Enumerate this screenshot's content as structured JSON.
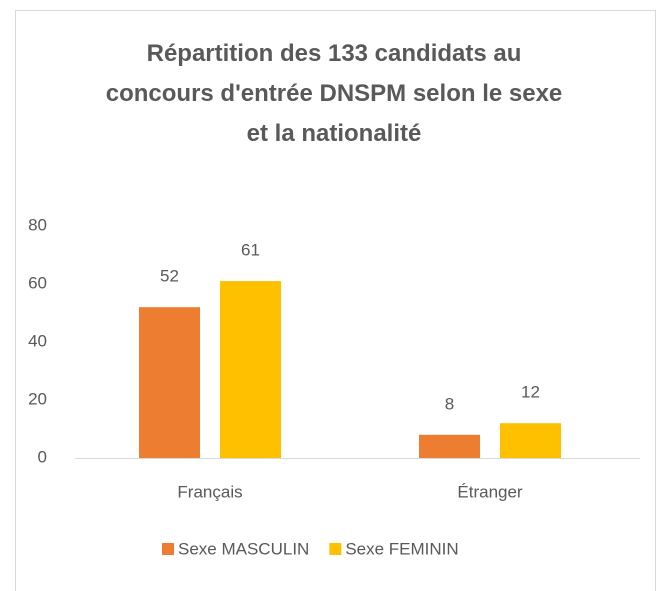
{
  "chart_data": {
    "type": "bar",
    "title": "Répartition des 133 candidats au concours d'entrée DNSPM selon le sexe et la nationalité",
    "categories": [
      "Français",
      "Étranger"
    ],
    "series": [
      {
        "name": "Sexe MASCULIN",
        "color": "#ed7d31",
        "values": [
          52,
          8
        ]
      },
      {
        "name": "Sexe FEMININ",
        "color": "#ffc000",
        "values": [
          61,
          12
        ]
      }
    ],
    "ylim": [
      0,
      80
    ],
    "yticks": [
      0,
      20,
      40,
      60,
      80
    ],
    "grid": false,
    "legend": "bottom"
  }
}
